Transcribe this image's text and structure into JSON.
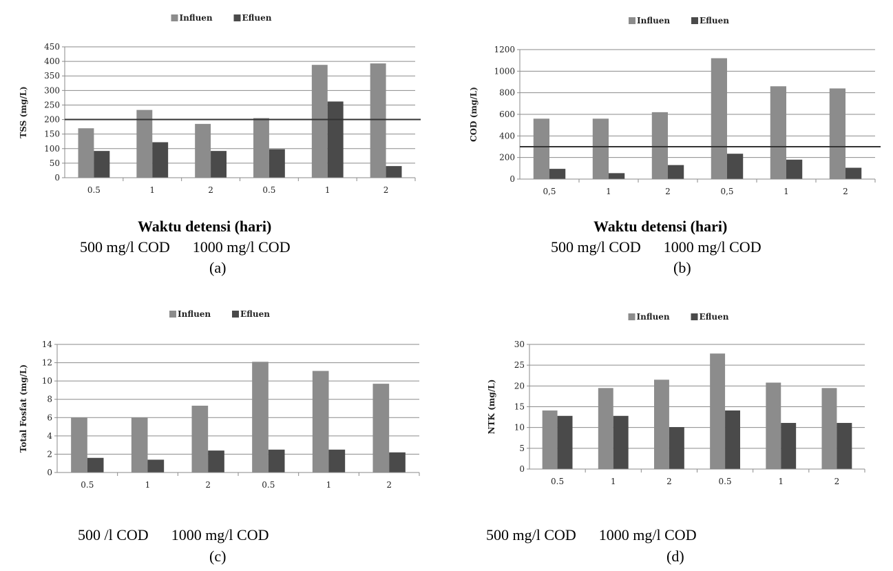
{
  "chart_data": [
    {
      "panel_id": "a",
      "type": "bar",
      "categories": [
        "0.5",
        "1",
        "2",
        "0.5",
        "1",
        "2"
      ],
      "series": [
        {
          "name": "Influen",
          "values": [
            170,
            233,
            185,
            205,
            388,
            393
          ]
        },
        {
          "name": "Efluen",
          "values": [
            92,
            122,
            92,
            98,
            262,
            40
          ]
        }
      ],
      "ylabel": "TSS (mg/L)",
      "yticks": [
        0,
        50,
        100,
        150,
        200,
        250,
        300,
        350,
        400,
        450
      ],
      "ylim": [
        0,
        450
      ],
      "reference_line": 200,
      "grid": true,
      "legend": "top-center",
      "xlabel": "Waktu detensi (hari)",
      "group_labels": [
        "500 mg/l COD",
        "1000 mg/l COD"
      ],
      "panel_label": "(a)"
    },
    {
      "panel_id": "b",
      "type": "bar",
      "categories": [
        "0,5",
        "1",
        "2",
        "0,5",
        "1",
        "2"
      ],
      "series": [
        {
          "name": "Influen",
          "values": [
            560,
            560,
            620,
            1120,
            860,
            840
          ]
        },
        {
          "name": "Efluen",
          "values": [
            95,
            55,
            130,
            235,
            180,
            105
          ]
        }
      ],
      "ylabel": "COD (mg/L)",
      "yticks": [
        0,
        200,
        400,
        600,
        800,
        1000,
        1200
      ],
      "ylim": [
        0,
        1200
      ],
      "reference_line": 300,
      "grid": true,
      "legend": "top-center",
      "xlabel": "Waktu detensi (hari)",
      "group_labels": [
        "500 mg/l COD",
        "1000 mg/l COD"
      ],
      "panel_label": "(b)"
    },
    {
      "panel_id": "c",
      "type": "bar",
      "categories": [
        "0.5",
        "1",
        "2",
        "0.5",
        "1",
        "2"
      ],
      "series": [
        {
          "name": "Influen",
          "values": [
            6.0,
            6.0,
            7.3,
            12.1,
            11.1,
            9.7
          ]
        },
        {
          "name": "Efluen",
          "values": [
            1.6,
            1.4,
            2.4,
            2.5,
            2.5,
            2.2
          ]
        }
      ],
      "ylabel": "Total Fosfat (mg/L)",
      "yticks": [
        0,
        2,
        4,
        6,
        8,
        10,
        12,
        14
      ],
      "ylim": [
        0,
        14
      ],
      "grid": true,
      "legend": "top-center",
      "group_labels": [
        "500 /l COD",
        "1000 mg/l COD"
      ],
      "panel_label": "(c)"
    },
    {
      "panel_id": "d",
      "type": "bar",
      "categories": [
        "0.5",
        "1",
        "2",
        "0.5",
        "1",
        "2"
      ],
      "series": [
        {
          "name": "Influen",
          "values": [
            14.1,
            19.5,
            21.5,
            27.8,
            20.8,
            19.5
          ]
        },
        {
          "name": "Efluen",
          "values": [
            12.8,
            12.8,
            10.1,
            14.1,
            11.1,
            11.1
          ]
        }
      ],
      "ylabel": "NTK (mg/L)",
      "yticks": [
        0,
        5,
        10,
        15,
        20,
        25,
        30
      ],
      "ylim": [
        0,
        30
      ],
      "grid": true,
      "legend": "top-center",
      "group_labels": [
        "500 mg/l COD",
        "1000 mg/l COD"
      ],
      "panel_label": "(d)"
    }
  ],
  "colors": {
    "influen": "#8c8c8c",
    "efluen": "#4a4a4a",
    "grid": "#8a8a8a",
    "reference_line": "#333333"
  }
}
